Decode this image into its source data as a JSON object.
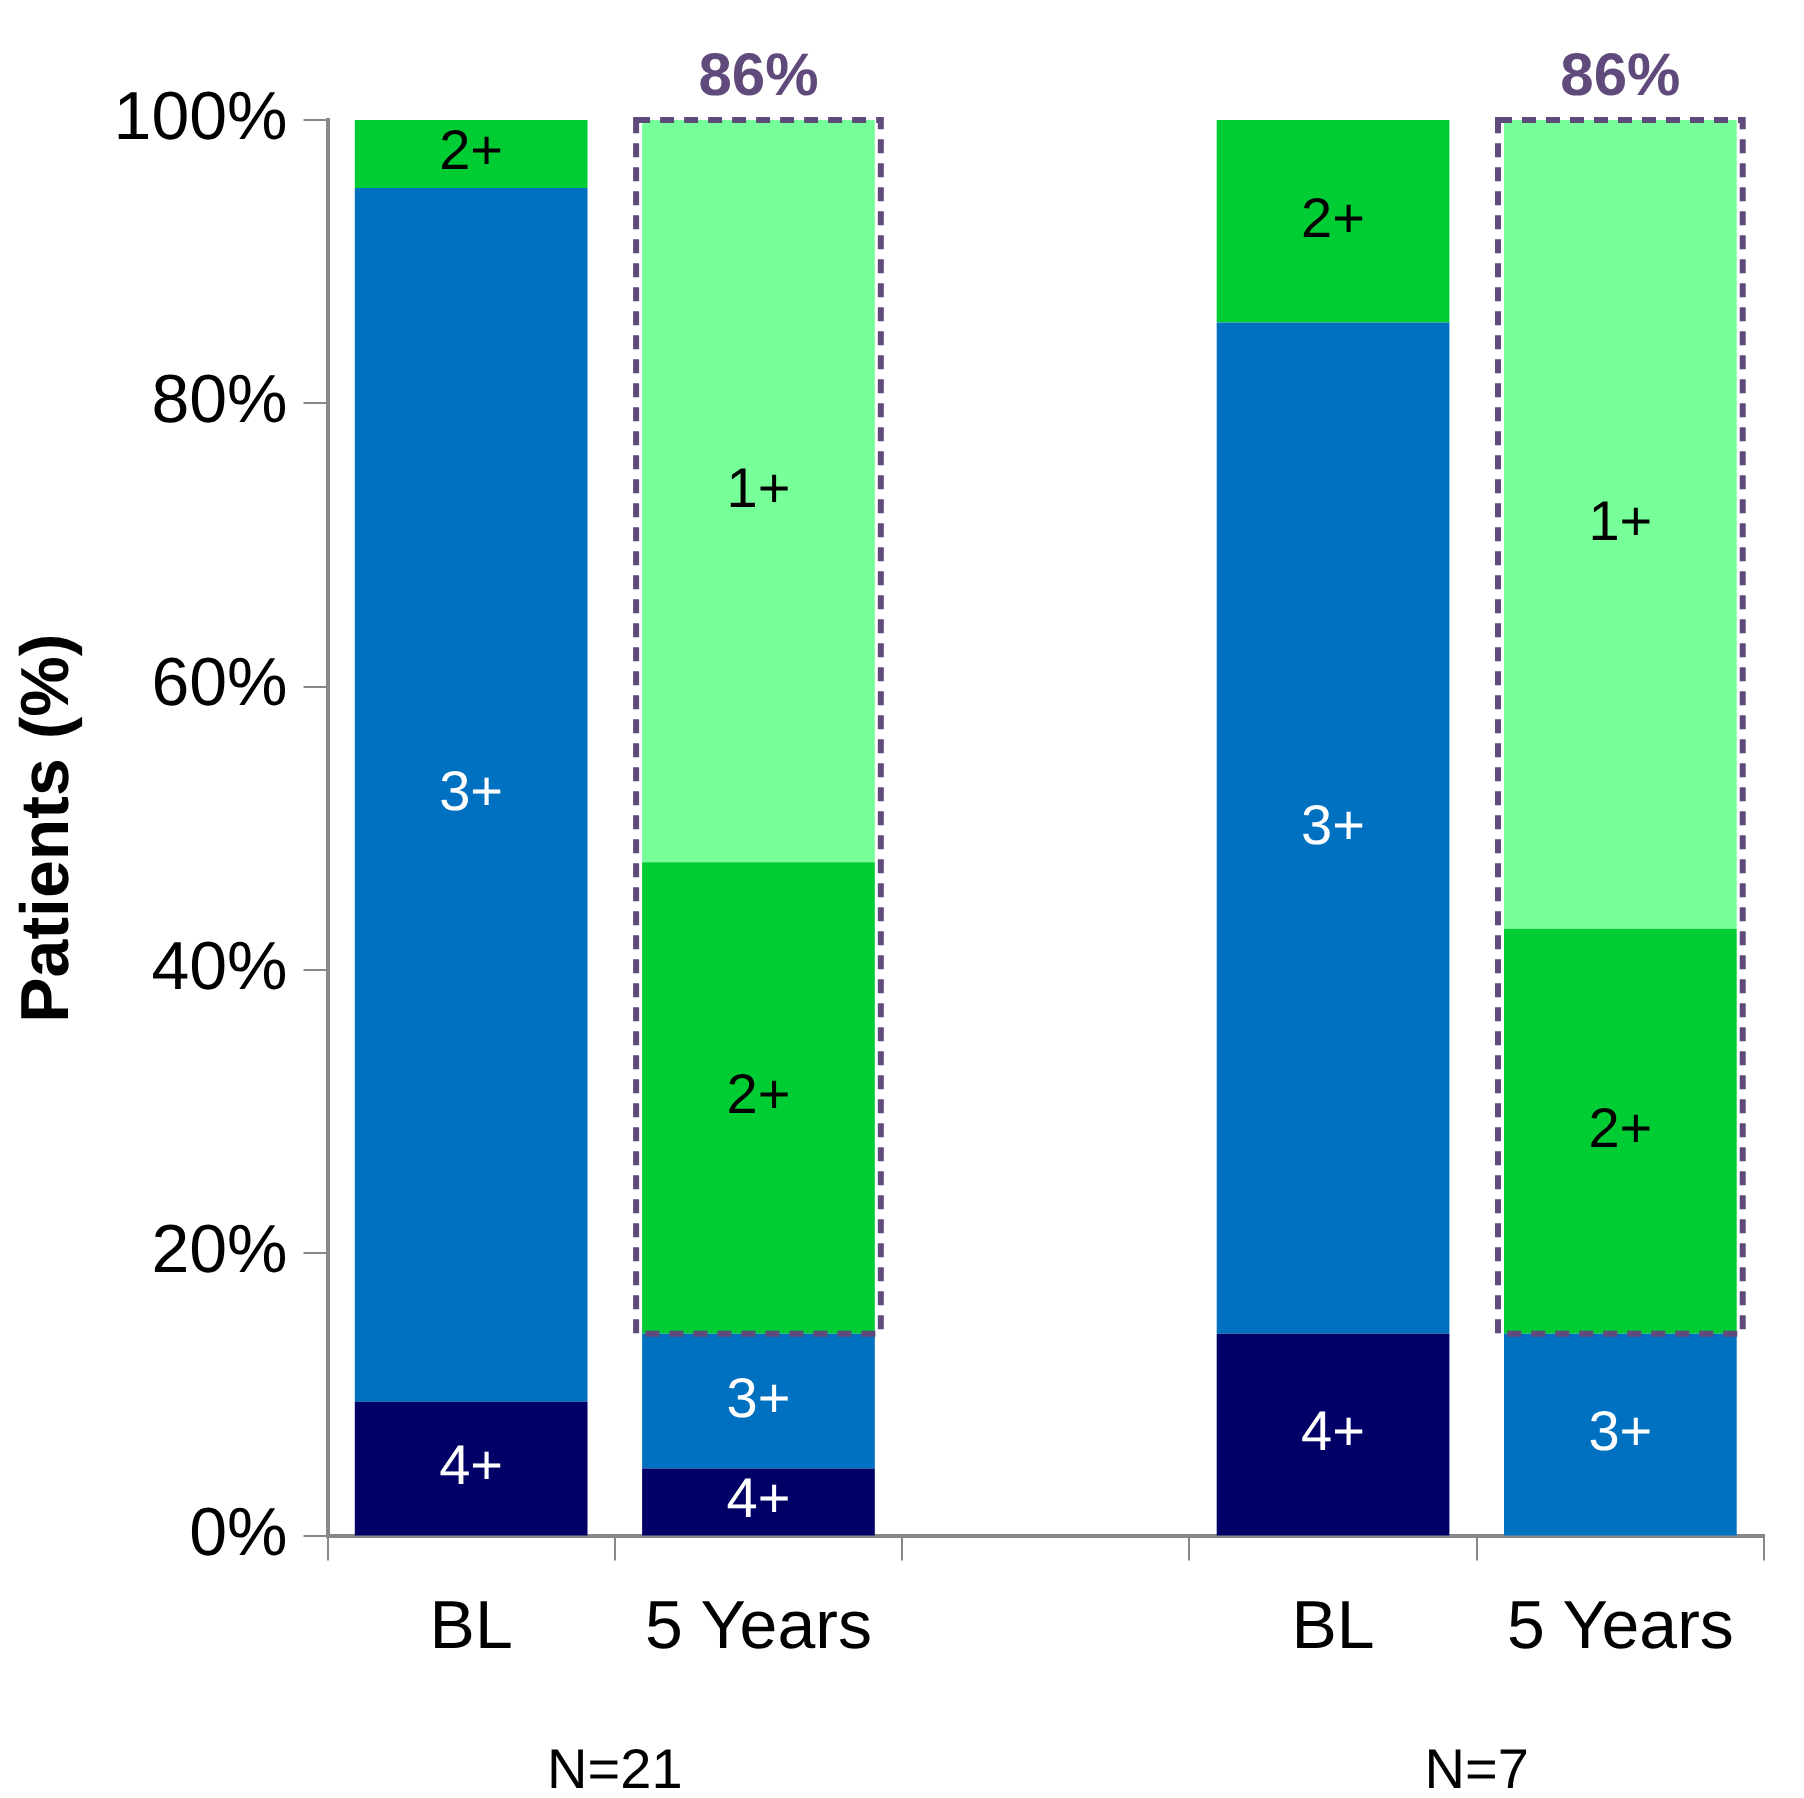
{
  "chart_data": {
    "type": "bar",
    "stacked": true,
    "ylabel": "Patients (%)",
    "categories": [
      "BL",
      "5 Years",
      null,
      "BL",
      "5 Years"
    ],
    "series": [
      {
        "name": "4+",
        "color": "#000066",
        "values": [
          9.5,
          4.8,
          null,
          14.3,
          null
        ]
      },
      {
        "name": "3+",
        "color": "#0070c0",
        "values": [
          85.7,
          9.5,
          null,
          71.4,
          14.3
        ]
      },
      {
        "name": "2+",
        "color": "#00cc33",
        "values": [
          4.8,
          33.3,
          null,
          14.3,
          28.6
        ]
      },
      {
        "name": "1+",
        "color": "#77ff99",
        "values": [
          null,
          52.4,
          null,
          null,
          57.1
        ]
      }
    ],
    "ylim": [
      0,
      100
    ],
    "yticks": [
      {
        "value": 0,
        "label": "0%"
      },
      {
        "value": 20,
        "label": "20%"
      },
      {
        "value": 40,
        "label": "40%"
      },
      {
        "value": 60,
        "label": "60%"
      },
      {
        "value": 80,
        "label": "80%"
      },
      {
        "value": 100,
        "label": "100%"
      }
    ],
    "annotations": [
      "86%",
      "86%",
      "N=21",
      "N=7"
    ],
    "grid": false,
    "legend": false
  }
}
